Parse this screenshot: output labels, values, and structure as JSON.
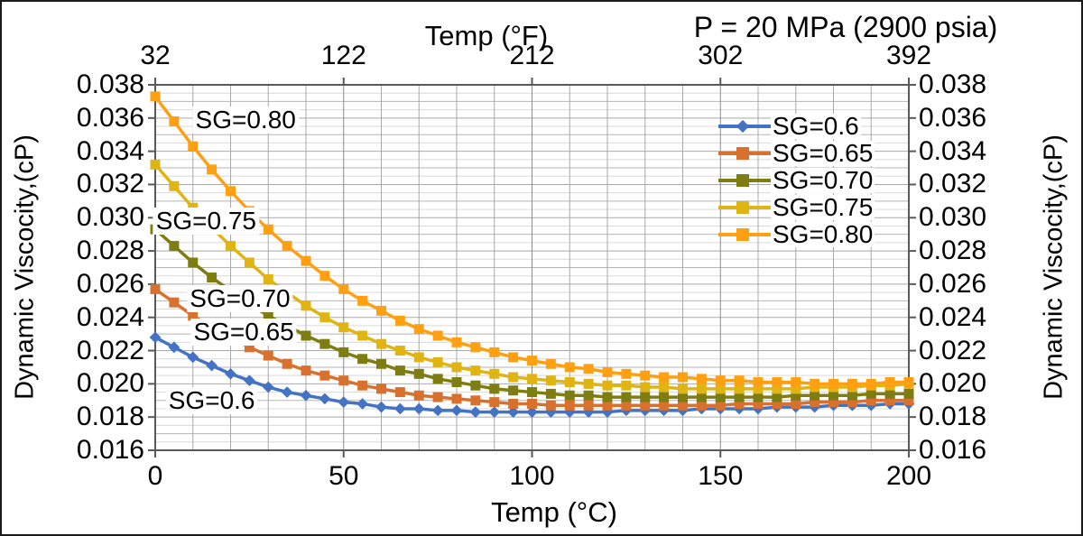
{
  "title": "P = 20 MPa (2900 psia)",
  "axes": {
    "top": {
      "label": "Temp (°F)",
      "tick_labels": [
        "32",
        "122",
        "212",
        "302",
        "392"
      ]
    },
    "bottom": {
      "label": "Temp (°C)",
      "tick_labels": [
        "0",
        "50",
        "100",
        "150",
        "200"
      ]
    },
    "left": {
      "label": "Dynamic Viscocity,(cP)",
      "tick_labels": [
        "0.038",
        "0.036",
        "0.034",
        "0.032",
        "0.030",
        "0.028",
        "0.026",
        "0.024",
        "0.022",
        "0.020",
        "0.018",
        "0.016"
      ]
    },
    "right": {
      "label": "Dynamic Viscocity,(cP)",
      "tick_labels": [
        "0.038",
        "0.036",
        "0.034",
        "0.032",
        "0.030",
        "0.028",
        "0.026",
        "0.024",
        "0.022",
        "0.020",
        "0.018",
        "0.016"
      ]
    }
  },
  "colors": {
    "plot_border": "#595959",
    "tick": "#595959",
    "grid_h_minor": "#d9d9d9",
    "grid_h_sub": "#b5b5b5",
    "grid_h_major": "#a9a9a9",
    "grid_v_minor": "#a8a8a8",
    "grid_v_major": "#8c8c8c"
  },
  "chart_data": {
    "type": "line",
    "title": "P = 20 MPa (2900 psia)",
    "xlabel": "Temp (°C)",
    "xlabel_top": "Temp (°F)",
    "ylabel": "Dynamic Viscocity,(cP)",
    "xlim": [
      0,
      200
    ],
    "ylim": [
      0.016,
      0.038
    ],
    "x_major_tick": 50,
    "y_major_tick": 0.002,
    "x_minor_grid": 10,
    "y_minor_grid": 0.0005,
    "grid": true,
    "legend_position": "inside-upper-right",
    "x": [
      0,
      5,
      10,
      15,
      20,
      25,
      30,
      35,
      40,
      45,
      50,
      55,
      60,
      65,
      70,
      75,
      80,
      85,
      90,
      95,
      100,
      105,
      110,
      115,
      120,
      125,
      130,
      135,
      140,
      145,
      150,
      155,
      160,
      165,
      170,
      175,
      180,
      185,
      190,
      195,
      200
    ],
    "series": [
      {
        "name": "SG=0.6",
        "color": "#4472C4",
        "marker": "diamond",
        "values": [
          0.0228,
          0.0222,
          0.0216,
          0.0211,
          0.0206,
          0.0202,
          0.0198,
          0.0195,
          0.0193,
          0.0191,
          0.0189,
          0.0188,
          0.0186,
          0.0185,
          0.0185,
          0.0184,
          0.0184,
          0.0183,
          0.0183,
          0.0183,
          0.0183,
          0.0183,
          0.0183,
          0.0183,
          0.0183,
          0.0184,
          0.0184,
          0.0184,
          0.0184,
          0.0185,
          0.0185,
          0.0185,
          0.0185,
          0.0186,
          0.0186,
          0.0186,
          0.0187,
          0.0187,
          0.0187,
          0.0188,
          0.0188
        ]
      },
      {
        "name": "SG=0.65",
        "color": "#D9712E",
        "marker": "square",
        "values": [
          0.0257,
          0.0249,
          0.0241,
          0.0234,
          0.0228,
          0.0222,
          0.0217,
          0.0212,
          0.0208,
          0.0205,
          0.0202,
          0.0199,
          0.0197,
          0.0195,
          0.0193,
          0.0192,
          0.0191,
          0.019,
          0.0189,
          0.0188,
          0.0188,
          0.0187,
          0.0187,
          0.0187,
          0.0187,
          0.0187,
          0.0187,
          0.0187,
          0.0187,
          0.0187,
          0.0187,
          0.0188,
          0.0188,
          0.0188,
          0.0188,
          0.0189,
          0.0189,
          0.0189,
          0.019,
          0.019,
          0.019
        ]
      },
      {
        "name": "SG=0.70",
        "color": "#7D7D12",
        "marker": "square",
        "values": [
          0.0293,
          0.0283,
          0.0273,
          0.0264,
          0.0256,
          0.0248,
          0.0241,
          0.0235,
          0.0229,
          0.0224,
          0.0219,
          0.0215,
          0.0212,
          0.0208,
          0.0206,
          0.0203,
          0.0201,
          0.0199,
          0.0197,
          0.0196,
          0.0195,
          0.0194,
          0.0193,
          0.0193,
          0.0192,
          0.0192,
          0.0192,
          0.0192,
          0.0192,
          0.0192,
          0.0192,
          0.0192,
          0.0192,
          0.0192,
          0.0193,
          0.0193,
          0.0193,
          0.0193,
          0.0194,
          0.0194,
          0.0194
        ]
      },
      {
        "name": "SG=0.75",
        "color": "#E0B413",
        "marker": "square",
        "values": [
          0.0332,
          0.0319,
          0.0306,
          0.0294,
          0.0283,
          0.0273,
          0.0263,
          0.0255,
          0.0247,
          0.024,
          0.0234,
          0.0229,
          0.0224,
          0.022,
          0.0216,
          0.0213,
          0.021,
          0.0208,
          0.0206,
          0.0204,
          0.0203,
          0.0202,
          0.0201,
          0.02,
          0.0199,
          0.0199,
          0.0198,
          0.0198,
          0.0197,
          0.0197,
          0.0197,
          0.0197,
          0.0197,
          0.0197,
          0.0197,
          0.0198,
          0.0198,
          0.0198,
          0.0199,
          0.0199,
          0.02
        ]
      },
      {
        "name": "SG=0.80",
        "color": "#FFA012",
        "marker": "square",
        "values": [
          0.0373,
          0.0358,
          0.0343,
          0.0329,
          0.0316,
          0.0304,
          0.0293,
          0.0283,
          0.0274,
          0.0265,
          0.0257,
          0.025,
          0.0244,
          0.0238,
          0.0233,
          0.0229,
          0.0225,
          0.0222,
          0.0219,
          0.0216,
          0.0214,
          0.0212,
          0.021,
          0.0209,
          0.0207,
          0.0206,
          0.0205,
          0.0204,
          0.0204,
          0.0203,
          0.0202,
          0.0202,
          0.0201,
          0.0201,
          0.0201,
          0.02,
          0.02,
          0.02,
          0.02,
          0.0201,
          0.0201
        ]
      }
    ],
    "annotations": [
      {
        "text": "SG=0.80",
        "x": 24,
        "y": 0.0359
      },
      {
        "text": "SG=0.75",
        "x": 13.5,
        "y": 0.0298
      },
      {
        "text": "SG=0.70",
        "x": 22.5,
        "y": 0.0251
      },
      {
        "text": "SG=0.65",
        "x": 23.5,
        "y": 0.0231
      },
      {
        "text": "SG=0.6",
        "x": 15,
        "y": 0.019
      }
    ]
  }
}
